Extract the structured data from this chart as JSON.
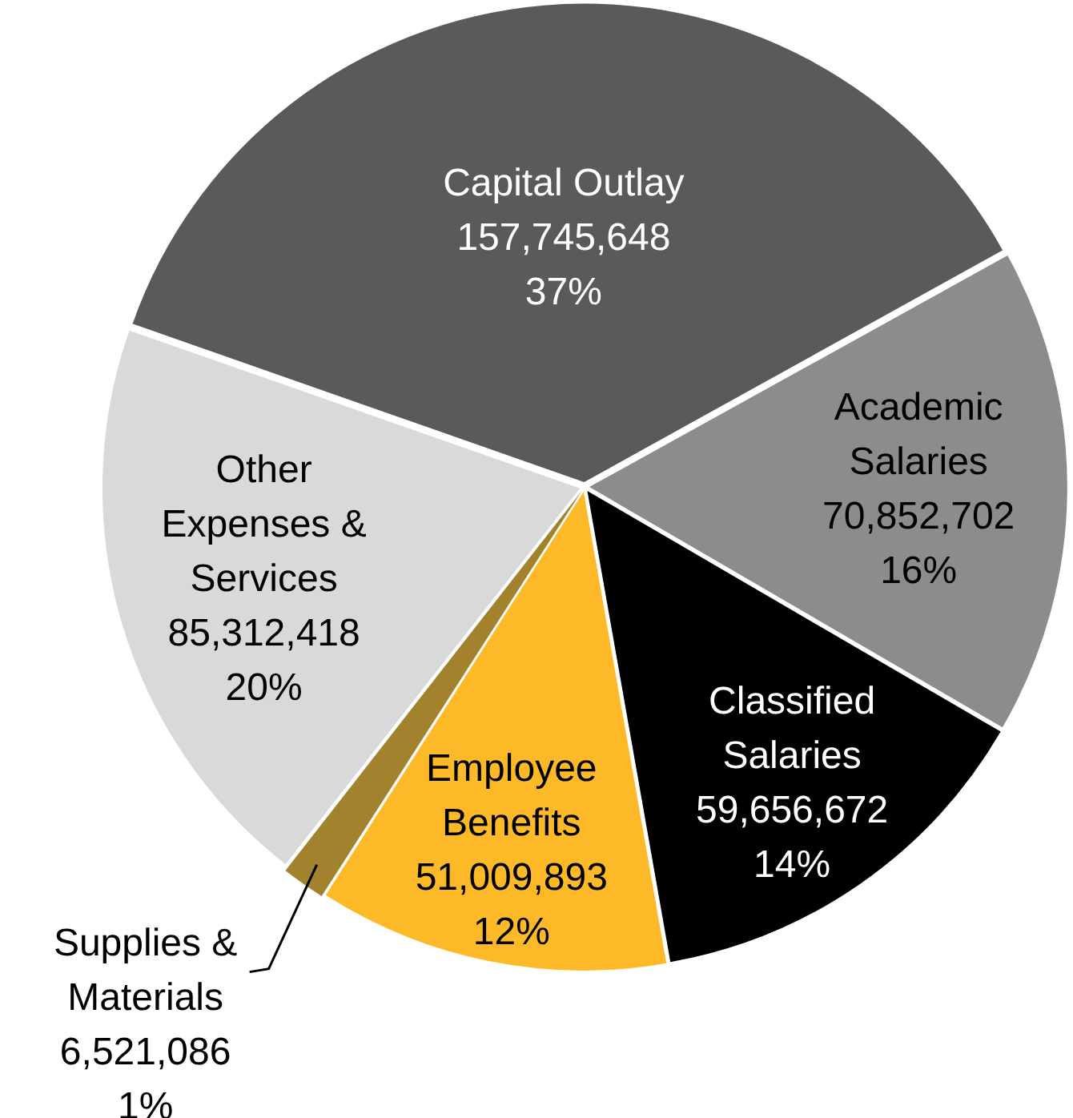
{
  "chart_data": {
    "type": "pie",
    "categories": [
      "Capital Outlay",
      "Academic Salaries",
      "Classified Salaries",
      "Employee Benefits",
      "Supplies & Materials",
      "Other Expenses & Services"
    ],
    "values": [
      157745648,
      70852702,
      59656672,
      51009893,
      6521086,
      85312418
    ],
    "colors": [
      "#5a5a5a",
      "#8c8c8c",
      "#000000",
      "#fdb927",
      "#a3822e",
      "#d9d9d9"
    ],
    "value_labels": [
      "157,745,648 37%",
      "70,852,702 16%",
      "59,656,672 14%",
      "51,009,893 12%",
      "6,521,086 1%",
      "85,312,418 20%"
    ],
    "legend": false
  }
}
